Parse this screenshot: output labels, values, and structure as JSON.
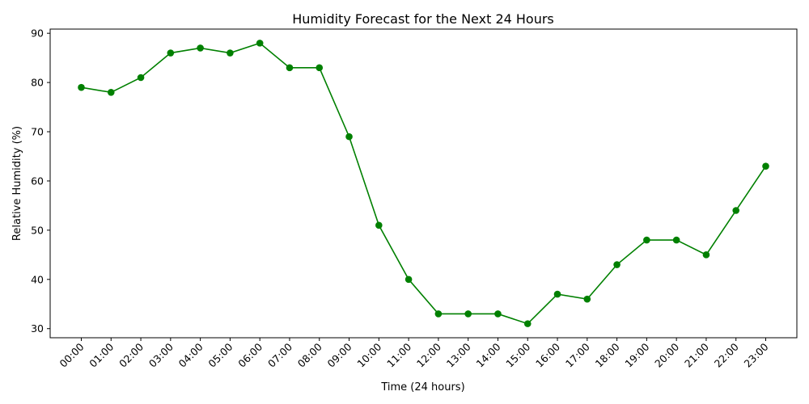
{
  "chart_data": {
    "type": "line",
    "title": "Humidity Forecast for the Next 24 Hours",
    "xlabel": "Time (24 hours)",
    "ylabel": "Relative Humidity (%)",
    "categories": [
      "00:00",
      "01:00",
      "02:00",
      "03:00",
      "04:00",
      "05:00",
      "06:00",
      "07:00",
      "08:00",
      "09:00",
      "10:00",
      "11:00",
      "12:00",
      "13:00",
      "14:00",
      "15:00",
      "16:00",
      "17:00",
      "18:00",
      "19:00",
      "20:00",
      "21:00",
      "22:00",
      "23:00"
    ],
    "values": [
      79,
      78,
      81,
      86,
      87,
      86,
      88,
      83,
      83,
      69,
      51,
      40,
      33,
      33,
      33,
      31,
      37,
      36,
      43,
      48,
      48,
      45,
      54,
      63
    ],
    "yticks": [
      30,
      40,
      50,
      60,
      70,
      80,
      90
    ],
    "ylim": [
      28.15,
      90.85
    ],
    "grid": false,
    "line_color": "#008000",
    "marker": "circle"
  }
}
